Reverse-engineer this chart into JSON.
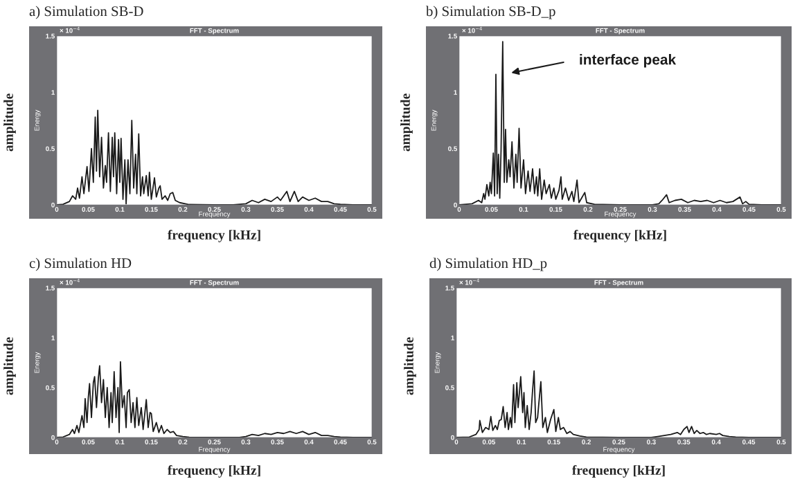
{
  "chart_data": [
    {
      "type": "line",
      "title": "a) Simulation SB-D",
      "subtitle": "FFT - Spectrum",
      "xlabel": "frequency [kHz]",
      "ylabel": "amplitude",
      "annotations": [
        "× 10$^{−4}$",
        "Energy",
        "Frequency"
      ],
      "xlim": [
        0,
        0.5
      ],
      "ylim": [
        0,
        1.5
      ],
      "xticks": [
        0,
        0.05,
        0.1,
        0.15,
        0.2,
        0.25,
        0.3,
        0.35,
        0.4,
        0.45,
        0.5
      ],
      "yticks": [
        0,
        0.5,
        1,
        1.5
      ],
      "grid": false,
      "legend": false,
      "series": [
        {
          "color": "#1a1a1a",
          "x": [
            0,
            0.01,
            0.02,
            0.025,
            0.03,
            0.033,
            0.036,
            0.04,
            0.043,
            0.048,
            0.051,
            0.055,
            0.058,
            0.061,
            0.063,
            0.065,
            0.068,
            0.071,
            0.074,
            0.077,
            0.079,
            0.082,
            0.085,
            0.088,
            0.09,
            0.092,
            0.095,
            0.098,
            0.1,
            0.102,
            0.105,
            0.108,
            0.11,
            0.113,
            0.116,
            0.119,
            0.122,
            0.125,
            0.127,
            0.13,
            0.133,
            0.136,
            0.138,
            0.142,
            0.145,
            0.147,
            0.15,
            0.155,
            0.158,
            0.162,
            0.164,
            0.167,
            0.172,
            0.176,
            0.18,
            0.184,
            0.188,
            0.195,
            0.21,
            0.25,
            0.28,
            0.3,
            0.31,
            0.32,
            0.33,
            0.34,
            0.35,
            0.355,
            0.365,
            0.37,
            0.377,
            0.383,
            0.39,
            0.4,
            0.41,
            0.42,
            0.43,
            0.44,
            0.45,
            0.47,
            0.5
          ],
          "values": [
            0,
            0.005,
            0.03,
            0.08,
            0.05,
            0.15,
            0.06,
            0.25,
            0.1,
            0.34,
            0.12,
            0.5,
            0.2,
            0.78,
            0.3,
            0.84,
            0.25,
            0.6,
            0.15,
            0.35,
            0.2,
            0.64,
            0.12,
            0.6,
            0.25,
            0.64,
            0.1,
            0.58,
            0.2,
            0.59,
            0.05,
            0.4,
            0.01,
            0.4,
            0.1,
            0.75,
            0.15,
            0.45,
            0.1,
            0.63,
            0.08,
            0.25,
            0.1,
            0.26,
            0.08,
            0.29,
            0.05,
            0.24,
            0.07,
            0.15,
            0.17,
            0.05,
            0.08,
            0.04,
            0.1,
            0.11,
            0.04,
            0.02,
            0.003,
            0,
            0,
            0.01,
            0.04,
            0.02,
            0.05,
            0.03,
            0.07,
            0.04,
            0.12,
            0.03,
            0.12,
            0.03,
            0.07,
            0.04,
            0.06,
            0.03,
            0.03,
            0.01,
            0.005,
            0,
            0
          ]
        }
      ]
    },
    {
      "type": "line",
      "title": "b) Simulation SB-D_p",
      "subtitle": "FFT - Spectrum",
      "xlabel": "frequency [kHz]",
      "ylabel": "amplitude",
      "annotations": [
        "× 10$^{−4}$",
        "Energy",
        "Frequency",
        "interface peak"
      ],
      "xlim": [
        0,
        0.5
      ],
      "ylim": [
        0,
        1.5
      ],
      "xticks": [
        0,
        0.05,
        0.1,
        0.15,
        0.2,
        0.25,
        0.3,
        0.35,
        0.4,
        0.45,
        0.5
      ],
      "yticks": [
        0,
        0.5,
        1,
        1.5
      ],
      "grid": false,
      "legend": false,
      "series": [
        {
          "color": "#1a1a1a",
          "x": [
            0,
            0.02,
            0.03,
            0.035,
            0.038,
            0.04,
            0.043,
            0.046,
            0.048,
            0.05,
            0.053,
            0.055,
            0.057,
            0.059,
            0.061,
            0.063,
            0.065,
            0.0676,
            0.07,
            0.072,
            0.074,
            0.077,
            0.079,
            0.082,
            0.085,
            0.088,
            0.09,
            0.093,
            0.096,
            0.1,
            0.103,
            0.107,
            0.11,
            0.114,
            0.117,
            0.12,
            0.122,
            0.125,
            0.128,
            0.132,
            0.135,
            0.14,
            0.143,
            0.147,
            0.15,
            0.155,
            0.158,
            0.16,
            0.165,
            0.17,
            0.175,
            0.178,
            0.183,
            0.186,
            0.19,
            0.195,
            0.198,
            0.21,
            0.25,
            0.3,
            0.31,
            0.315,
            0.322,
            0.326,
            0.335,
            0.345,
            0.355,
            0.365,
            0.375,
            0.385,
            0.395,
            0.405,
            0.415,
            0.425,
            0.436,
            0.44,
            0.445,
            0.45,
            0.47,
            0.5
          ],
          "values": [
            0,
            0.01,
            0.04,
            0.02,
            0.1,
            0.05,
            0.18,
            0.08,
            0.2,
            0.1,
            0.46,
            0.08,
            1.16,
            0.1,
            0.45,
            0.06,
            0.48,
            1.45,
            0.2,
            0.67,
            0.2,
            0.4,
            0.25,
            0.56,
            0.15,
            0.45,
            0.2,
            0.68,
            0.15,
            0.4,
            0.1,
            0.3,
            0.12,
            0.32,
            0.1,
            0.25,
            0.08,
            0.32,
            0.05,
            0.22,
            0.1,
            0.18,
            0.06,
            0.15,
            0.05,
            0.13,
            0.25,
            0.05,
            0.15,
            0.04,
            0.12,
            0.03,
            0.22,
            0.02,
            0.06,
            0.11,
            0.02,
            0.005,
            0,
            0,
            0.01,
            0.04,
            0.09,
            0.02,
            0.04,
            0.05,
            0.02,
            0.04,
            0.03,
            0.04,
            0.02,
            0.04,
            0.02,
            0.03,
            0.07,
            0.01,
            0.03,
            0.005,
            0,
            0
          ]
        }
      ]
    },
    {
      "type": "line",
      "title": "c) Simulation HD",
      "subtitle": "FFT - Spectrum",
      "xlabel": "frequency [kHz]",
      "ylabel": "amplitude",
      "annotations": [
        "× 10$^{−4}$",
        "Energy",
        "Frequency"
      ],
      "xlim": [
        0,
        0.5
      ],
      "ylim": [
        0,
        1.5
      ],
      "xticks": [
        0,
        0.05,
        0.1,
        0.15,
        0.2,
        0.25,
        0.3,
        0.35,
        0.4,
        0.45,
        0.5
      ],
      "yticks": [
        0,
        0.5,
        1,
        1.5
      ],
      "grid": false,
      "legend": false,
      "series": [
        {
          "color": "#1a1a1a",
          "x": [
            0,
            0.01,
            0.02,
            0.025,
            0.028,
            0.032,
            0.035,
            0.04,
            0.043,
            0.045,
            0.048,
            0.05,
            0.052,
            0.055,
            0.058,
            0.06,
            0.063,
            0.066,
            0.068,
            0.071,
            0.074,
            0.077,
            0.08,
            0.083,
            0.086,
            0.088,
            0.091,
            0.094,
            0.097,
            0.099,
            0.101,
            0.104,
            0.107,
            0.11,
            0.112,
            0.115,
            0.118,
            0.121,
            0.124,
            0.127,
            0.13,
            0.134,
            0.137,
            0.142,
            0.145,
            0.148,
            0.15,
            0.153,
            0.158,
            0.162,
            0.166,
            0.17,
            0.175,
            0.18,
            0.185,
            0.19,
            0.2,
            0.21,
            0.25,
            0.29,
            0.3,
            0.31,
            0.32,
            0.33,
            0.34,
            0.35,
            0.36,
            0.37,
            0.38,
            0.39,
            0.4,
            0.41,
            0.42,
            0.43,
            0.44,
            0.45,
            0.47,
            0.5
          ],
          "values": [
            0,
            0.005,
            0.03,
            0.08,
            0.04,
            0.12,
            0.05,
            0.22,
            0.1,
            0.39,
            0.15,
            0.4,
            0.54,
            0.2,
            0.55,
            0.61,
            0.3,
            0.6,
            0.72,
            0.35,
            0.58,
            0.2,
            0.5,
            0.1,
            0.45,
            0.15,
            0.66,
            0.2,
            0.5,
            0.05,
            0.76,
            0.3,
            0.42,
            0.1,
            0.45,
            0.48,
            0.15,
            0.35,
            0.1,
            0.4,
            0.12,
            0.3,
            0.08,
            0.38,
            0.1,
            0.25,
            0.24,
            0.06,
            0.15,
            0.05,
            0.12,
            0.04,
            0.08,
            0.05,
            0.06,
            0.02,
            0.01,
            0.003,
            0,
            0,
            0.01,
            0.03,
            0.02,
            0.04,
            0.03,
            0.05,
            0.04,
            0.06,
            0.04,
            0.06,
            0.03,
            0.05,
            0.02,
            0.02,
            0.01,
            0.005,
            0,
            0
          ]
        }
      ]
    },
    {
      "type": "line",
      "title": "d) Simulation HD_p",
      "subtitle": "FFT - Spectrum",
      "xlabel": "frequency [kHz]",
      "ylabel": "amplitude",
      "annotations": [
        "× 10$^{−4}$",
        "Energy",
        "Frequency"
      ],
      "xlim": [
        0,
        0.5
      ],
      "ylim": [
        0,
        1.5
      ],
      "xticks": [
        0,
        0.05,
        0.1,
        0.15,
        0.2,
        0.25,
        0.3,
        0.35,
        0.4,
        0.45,
        0.5
      ],
      "yticks": [
        0,
        0.5,
        1,
        1.5
      ],
      "grid": false,
      "legend": false,
      "series": [
        {
          "color": "#1a1a1a",
          "x": [
            0,
            0.02,
            0.03,
            0.035,
            0.036,
            0.04,
            0.045,
            0.05,
            0.053,
            0.056,
            0.06,
            0.063,
            0.066,
            0.069,
            0.072,
            0.075,
            0.078,
            0.08,
            0.083,
            0.085,
            0.088,
            0.09,
            0.093,
            0.095,
            0.097,
            0.099,
            0.102,
            0.104,
            0.106,
            0.109,
            0.112,
            0.115,
            0.117,
            0.1196,
            0.122,
            0.125,
            0.127,
            0.13,
            0.133,
            0.137,
            0.14,
            0.145,
            0.15,
            0.153,
            0.157,
            0.16,
            0.165,
            0.17,
            0.175,
            0.18,
            0.19,
            0.2,
            0.25,
            0.3,
            0.31,
            0.32,
            0.33,
            0.34,
            0.345,
            0.35,
            0.355,
            0.358,
            0.362,
            0.366,
            0.37,
            0.375,
            0.38,
            0.385,
            0.39,
            0.4,
            0.405,
            0.41,
            0.42,
            0.43,
            0.45,
            0.5
          ],
          "values": [
            0,
            0.005,
            0.03,
            0.08,
            0.17,
            0.05,
            0.1,
            0.08,
            0.21,
            0.07,
            0.12,
            0.08,
            0.17,
            0.18,
            0.31,
            0.1,
            0.25,
            0.08,
            0.2,
            0.1,
            0.53,
            0.15,
            0.55,
            0.3,
            0.45,
            0.61,
            0.25,
            0.45,
            0.1,
            0.32,
            0.08,
            0.25,
            0.45,
            0.667,
            0.15,
            0.2,
            0.35,
            0.56,
            0.1,
            0.2,
            0.05,
            0.18,
            0.28,
            0.06,
            0.2,
            0.08,
            0.1,
            0.04,
            0.06,
            0.03,
            0.015,
            0.005,
            0,
            0,
            0.01,
            0.02,
            0.03,
            0.05,
            0.03,
            0.08,
            0.11,
            0.05,
            0.11,
            0.04,
            0.07,
            0.04,
            0.05,
            0.03,
            0.04,
            0.03,
            0.04,
            0.02,
            0.01,
            0.005,
            0,
            0
          ]
        }
      ]
    }
  ]
}
